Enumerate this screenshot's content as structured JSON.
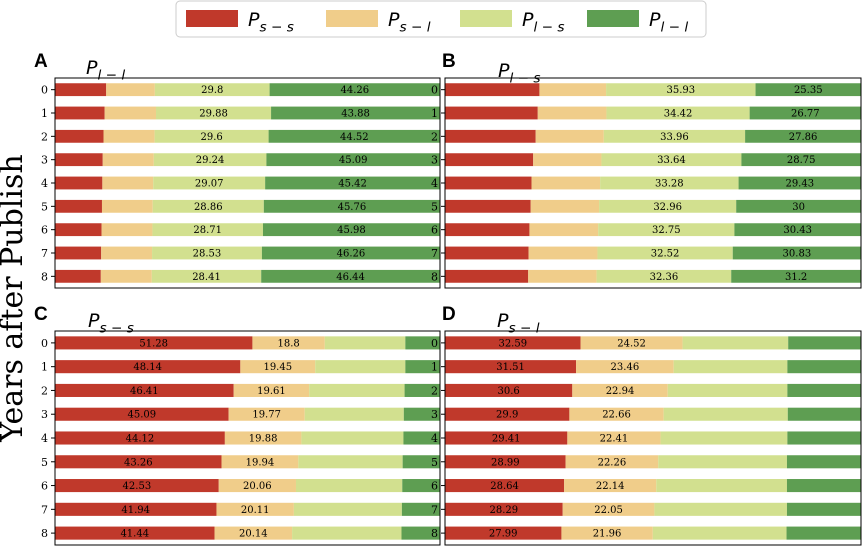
{
  "colors": {
    "Pss": "#c0392b",
    "Psl": "#f0cd8a",
    "Pls": "#d2e08f",
    "Pll": "#5e9e52"
  },
  "legend": [
    {
      "key": "Pss",
      "base": "P",
      "sub": "s − s"
    },
    {
      "key": "Psl",
      "base": "P",
      "sub": "s − l"
    },
    {
      "key": "Pls",
      "base": "P",
      "sub": "l − s"
    },
    {
      "key": "Pll",
      "base": "P",
      "sub": "l − l"
    }
  ],
  "ylabel": "Years after Publish",
  "chart_data": [
    {
      "type": "bar",
      "orientation": "horizontal-stacked",
      "letter": "A",
      "title_base": "P",
      "title_sub": "l − l",
      "xlim": [
        0,
        100
      ],
      "categories": [
        "0",
        "1",
        "2",
        "3",
        "4",
        "5",
        "6",
        "7",
        "8"
      ],
      "series": [
        {
          "name": "Pss",
          "values": [
            13.3,
            12.9,
            12.6,
            12.4,
            12.3,
            12.2,
            12.1,
            12.0,
            11.9
          ]
        },
        {
          "name": "Psl",
          "values": [
            12.64,
            13.34,
            13.28,
            13.27,
            13.21,
            13.18,
            13.21,
            13.21,
            13.25
          ]
        },
        {
          "name": "Pls",
          "values": [
            29.8,
            29.88,
            29.6,
            29.24,
            29.07,
            28.86,
            28.71,
            28.53,
            28.41
          ]
        },
        {
          "name": "Pll",
          "values": [
            44.26,
            43.88,
            44.52,
            45.09,
            45.42,
            45.76,
            45.98,
            46.26,
            46.44
          ]
        }
      ],
      "labels": {
        "Pls": [
          "29.8",
          "29.88",
          "29.6",
          "29.24",
          "29.07",
          "28.86",
          "28.71",
          "28.53",
          "28.41"
        ],
        "Pll": [
          "44.26",
          "43.88",
          "44.52",
          "45.09",
          "45.42",
          "45.76",
          "45.98",
          "46.26",
          "46.44"
        ]
      }
    },
    {
      "type": "bar",
      "orientation": "horizontal-stacked",
      "letter": "B",
      "title_base": "P",
      "title_sub": "l − s",
      "xlim": [
        0,
        100
      ],
      "categories": [
        "0",
        "1",
        "2",
        "3",
        "4",
        "5",
        "6",
        "7",
        "8"
      ],
      "series": [
        {
          "name": "Pss",
          "values": [
            22.7,
            22.3,
            21.8,
            21.2,
            20.8,
            20.6,
            20.3,
            20.1,
            20.0
          ]
        },
        {
          "name": "Psl",
          "values": [
            16.02,
            16.51,
            16.38,
            16.41,
            16.49,
            16.44,
            16.52,
            16.55,
            16.44
          ]
        },
        {
          "name": "Pls",
          "values": [
            35.93,
            34.42,
            33.96,
            33.64,
            33.28,
            32.96,
            32.75,
            32.52,
            32.36
          ]
        },
        {
          "name": "Pll",
          "values": [
            25.35,
            26.77,
            27.86,
            28.75,
            29.43,
            30.0,
            30.43,
            30.83,
            31.2
          ]
        }
      ],
      "labels": {
        "Pls": [
          "35.93",
          "34.42",
          "33.96",
          "33.64",
          "33.28",
          "32.96",
          "32.75",
          "32.52",
          "32.36"
        ],
        "Pll": [
          "25.35",
          "26.77",
          "27.86",
          "28.75",
          "29.43",
          "30",
          "30.43",
          "30.83",
          "31.2"
        ]
      }
    },
    {
      "type": "bar",
      "orientation": "horizontal-stacked",
      "letter": "C",
      "title_base": "P",
      "title_sub": "s − s",
      "xlim": [
        0,
        100
      ],
      "categories": [
        "0",
        "1",
        "2",
        "3",
        "4",
        "5",
        "6",
        "7",
        "8"
      ],
      "series": [
        {
          "name": "Pss",
          "values": [
            51.28,
            48.14,
            46.41,
            45.09,
            44.12,
            43.26,
            42.53,
            41.94,
            41.44
          ]
        },
        {
          "name": "Psl",
          "values": [
            18.8,
            19.45,
            19.61,
            19.77,
            19.88,
            19.94,
            20.06,
            20.11,
            20.14
          ]
        },
        {
          "name": "Pls",
          "values": [
            20.92,
            23.41,
            24.78,
            25.74,
            26.5,
            27.1,
            27.61,
            28.05,
            28.42
          ]
        },
        {
          "name": "Pll",
          "values": [
            9.0,
            9.0,
            9.2,
            9.4,
            9.5,
            9.7,
            9.8,
            9.9,
            10.0
          ]
        }
      ],
      "labels": {
        "Pss": [
          "51.28",
          "48.14",
          "46.41",
          "45.09",
          "44.12",
          "43.26",
          "42.53",
          "41.94",
          "41.44"
        ],
        "Psl": [
          "18.8",
          "19.45",
          "19.61",
          "19.77",
          "19.88",
          "19.94",
          "20.06",
          "20.11",
          "20.14"
        ]
      }
    },
    {
      "type": "bar",
      "orientation": "horizontal-stacked",
      "letter": "D",
      "title_base": "P",
      "title_sub": "s − l",
      "xlim": [
        0,
        100
      ],
      "categories": [
        "0",
        "1",
        "2",
        "3",
        "4",
        "5",
        "6",
        "7",
        "8"
      ],
      "series": [
        {
          "name": "Pss",
          "values": [
            32.59,
            31.51,
            30.6,
            29.9,
            29.41,
            28.99,
            28.64,
            28.29,
            27.99
          ]
        },
        {
          "name": "Psl",
          "values": [
            24.52,
            23.46,
            22.94,
            22.66,
            22.41,
            22.26,
            22.14,
            22.05,
            21.96
          ]
        },
        {
          "name": "Pls",
          "values": [
            25.39,
            27.33,
            28.76,
            29.84,
            30.48,
            30.95,
            31.42,
            31.86,
            32.15
          ]
        },
        {
          "name": "Pll",
          "values": [
            17.5,
            17.7,
            17.7,
            17.6,
            17.7,
            17.8,
            17.8,
            17.8,
            17.9
          ]
        }
      ],
      "labels": {
        "Pss": [
          "32.59",
          "31.51",
          "30.6",
          "29.9",
          "29.41",
          "28.99",
          "28.64",
          "28.29",
          "27.99"
        ],
        "Psl": [
          "24.52",
          "23.46",
          "22.94",
          "22.66",
          "22.41",
          "22.26",
          "22.14",
          "22.05",
          "21.96"
        ]
      }
    }
  ]
}
